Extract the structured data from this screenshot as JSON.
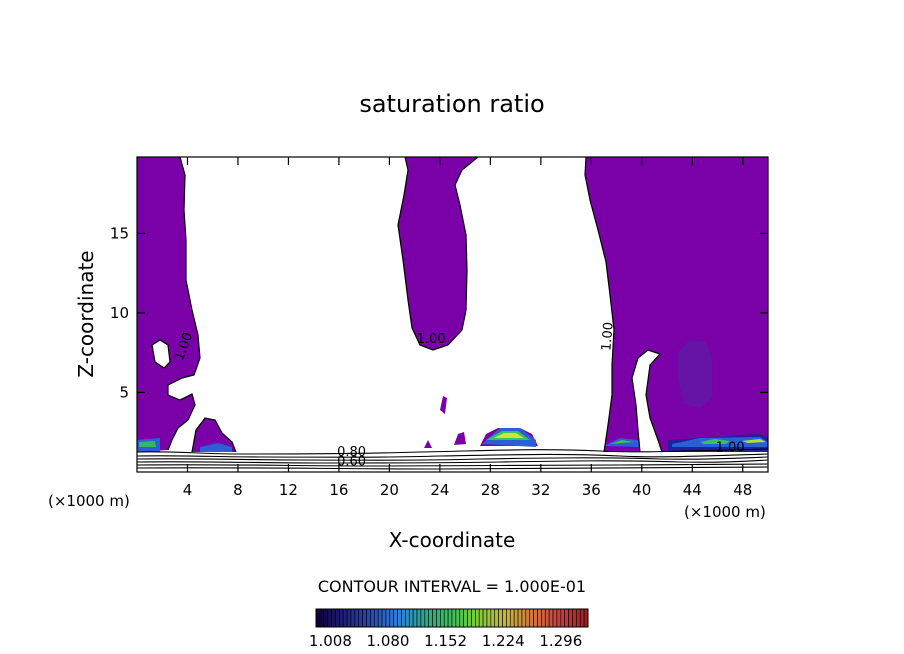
{
  "chart_data": {
    "type": "contour",
    "title": "saturation ratio",
    "xlabel": "X-coordinate",
    "ylabel": "Z-coordinate",
    "x_unit_left": "(×1000 m)",
    "x_unit_right": "(×1000 m)",
    "xlim": [
      0,
      50
    ],
    "ylim": [
      0,
      19.8
    ],
    "xticks": [
      4,
      8,
      12,
      16,
      20,
      24,
      28,
      32,
      36,
      40,
      44,
      48
    ],
    "yticks": [
      5,
      10,
      15
    ],
    "contour_interval_text": "CONTOUR INTERVAL = 1.000E-01",
    "contour_labels": [
      {
        "text": "1.00",
        "x": 4.0,
        "z": 7.8
      },
      {
        "text": "1.00",
        "x": 23.3,
        "z": 8.1
      },
      {
        "text": "1.00",
        "x": 37.6,
        "z": 8.5
      },
      {
        "text": "1.00",
        "x": 47.0,
        "z": 1.3
      },
      {
        "text": "0.80",
        "x": 17.0,
        "z": 1.0
      },
      {
        "text": "0.60",
        "x": 17.0,
        "z": 0.4
      }
    ],
    "supersaturated_regions": [
      {
        "x": [
          0,
          8
        ]
      },
      {
        "x": [
          21,
          26
        ]
      },
      {
        "x": [
          35.5,
          50
        ]
      }
    ],
    "colorbar": {
      "ticks": [
        "1.008",
        "1.080",
        "1.152",
        "1.224",
        "1.296"
      ],
      "min": 0.99,
      "max": 1.33,
      "colors": [
        "#10003a",
        "#20207a",
        "#2a4ab8",
        "#2f7fd8",
        "#2aa88a",
        "#3cc058",
        "#82cc3a",
        "#c8b43a",
        "#d07840",
        "#c84040",
        "#a02020"
      ]
    },
    "fill_color": "#7a00a8"
  }
}
